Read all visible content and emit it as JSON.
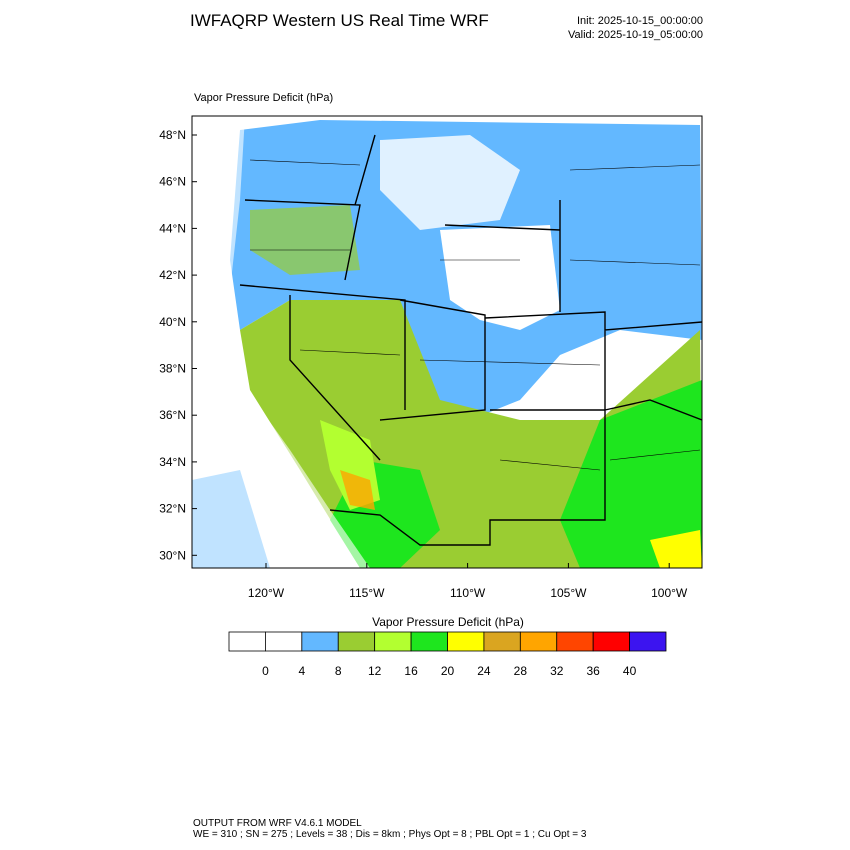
{
  "header": {
    "title": "IWFAQRP Western US Real Time WRF",
    "init": "Init: 2025-10-15_00:00:00",
    "valid": "Valid: 2025-10-19_05:00:00"
  },
  "map": {
    "label": "Vapor Pressure Deficit   (hPa)",
    "lat_labels": [
      "48°N",
      "46°N",
      "44°N",
      "42°N",
      "40°N",
      "38°N",
      "36°N",
      "34°N",
      "32°N",
      "30°N"
    ],
    "lon_labels": [
      "120°W",
      "115°W",
      "110°W",
      "105°W",
      "100°W"
    ]
  },
  "colorbar": {
    "title": "Vapor Pressure Deficit  (hPa)",
    "levels": [
      0,
      4,
      8,
      12,
      16,
      20,
      24,
      28,
      32,
      36,
      40
    ],
    "colors": [
      "#ffffff",
      "#ffffff",
      "#63b8ff",
      "#9acd32",
      "#b3ff30",
      "#1ee61e",
      "#ffff00",
      "#daa520",
      "#ffa500",
      "#ff4500",
      "#ff0000",
      "#3c14f0"
    ]
  },
  "footer": {
    "line1": "OUTPUT FROM WRF V4.6.1 MODEL",
    "line2": "WE = 310 ; SN = 275 ; Levels = 38 ; Dis = 8km ; Phys Opt = 8 ; PBL Opt = 1 ; Cu Opt = 3"
  }
}
